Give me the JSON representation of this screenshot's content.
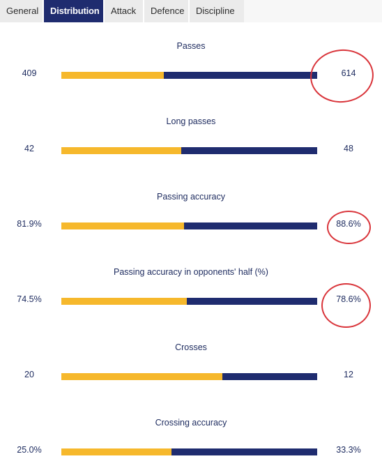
{
  "tabs": [
    {
      "label": "General",
      "active": false
    },
    {
      "label": "Distribution",
      "active": true
    },
    {
      "label": "Attack",
      "active": false
    },
    {
      "label": "Defence",
      "active": false
    },
    {
      "label": "Discipline",
      "active": false
    }
  ],
  "stats": [
    {
      "label": "Passes",
      "home": "409",
      "away": "614",
      "home_share": 0.4,
      "highlighted": true
    },
    {
      "label": "Long passes",
      "home": "42",
      "away": "48",
      "home_share": 0.47,
      "highlighted": false
    },
    {
      "label": "Passing accuracy",
      "home": "81.9%",
      "away": "88.6%",
      "home_share": 0.48,
      "highlighted": true
    },
    {
      "label": "Passing accuracy in opponents' half (%)",
      "home": "74.5%",
      "away": "78.6%",
      "home_share": 0.49,
      "highlighted": true
    },
    {
      "label": "Crosses",
      "home": "20",
      "away": "12",
      "home_share": 0.63,
      "highlighted": false
    },
    {
      "label": "Crossing accuracy",
      "home": "25.0%",
      "away": "33.3%",
      "home_share": 0.43,
      "highlighted": false
    }
  ],
  "colors": {
    "home_bar": "#f6b82c",
    "away_bar": "#1f2c6f",
    "text": "#1c2a5e",
    "annotation": "#d9343a"
  }
}
